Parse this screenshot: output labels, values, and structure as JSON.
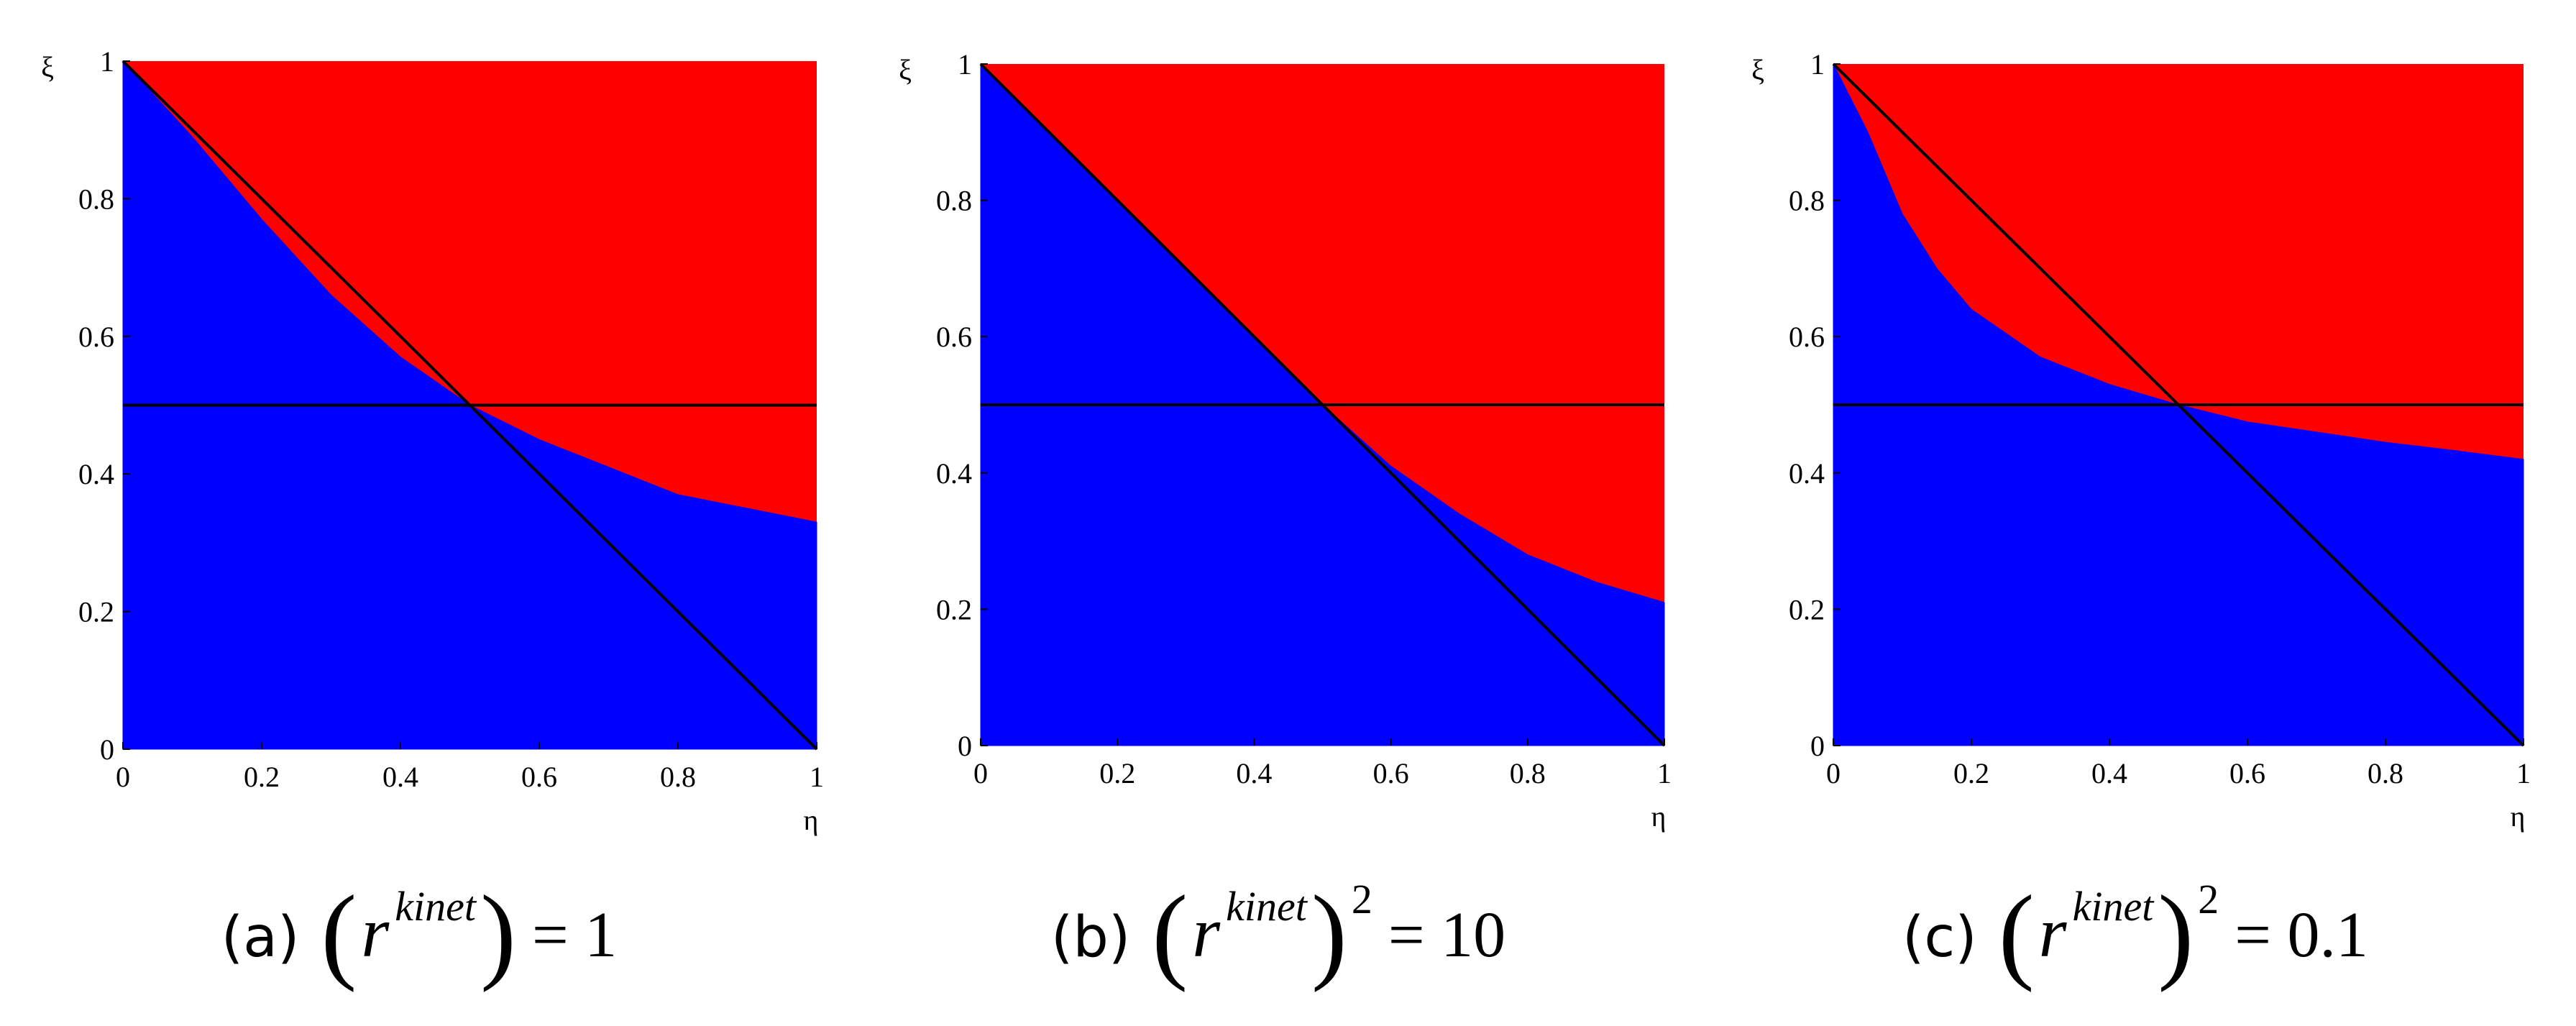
{
  "chart_data": [
    {
      "type": "region",
      "xlabel": "η",
      "ylabel": "ξ",
      "below_color": "#0000ff",
      "above_color": "#ff0000",
      "xlim": [
        0,
        1
      ],
      "ylim": [
        0,
        1
      ],
      "xticks": [
        0,
        0.2,
        0.4,
        0.6,
        0.8,
        1
      ],
      "yticks": [
        0,
        0.2,
        0.4,
        0.6,
        0.8,
        1
      ],
      "x": [
        0,
        0.1,
        0.2,
        0.3,
        0.4,
        0.5,
        0.6,
        0.7,
        0.8,
        0.9,
        1
      ],
      "values": [
        1,
        0.89,
        0.77,
        0.66,
        0.57,
        0.5,
        0.45,
        0.41,
        0.37,
        0.35,
        0.33
      ],
      "lines": [
        {
          "color": "#000000",
          "x": [
            0,
            1
          ],
          "values": [
            1,
            0
          ]
        },
        {
          "color": "#000000",
          "x": [
            0,
            1
          ],
          "values": [
            0.5,
            0.5
          ]
        }
      ],
      "caption": {
        "label": "(a)",
        "open": "(",
        "base": "r",
        "superscript": "kinet",
        "close": ")",
        "rhs": "= 1"
      }
    },
    {
      "type": "region",
      "xlabel": "η",
      "ylabel": "ξ",
      "below_color": "#0000ff",
      "above_color": "#ff0000",
      "xlim": [
        0,
        1
      ],
      "ylim": [
        0,
        1
      ],
      "xticks": [
        0,
        0.2,
        0.4,
        0.6,
        0.8,
        1
      ],
      "yticks": [
        0,
        0.2,
        0.4,
        0.6,
        0.8,
        1
      ],
      "x": [
        0,
        0.1,
        0.2,
        0.3,
        0.4,
        0.5,
        0.6,
        0.7,
        0.8,
        0.9,
        1
      ],
      "values": [
        1,
        0.9,
        0.8,
        0.7,
        0.6,
        0.5,
        0.41,
        0.34,
        0.28,
        0.24,
        0.21
      ],
      "lines": [
        {
          "color": "#000000",
          "x": [
            0,
            1
          ],
          "values": [
            1,
            0
          ]
        },
        {
          "color": "#000000",
          "x": [
            0,
            1
          ],
          "values": [
            0.5,
            0.5
          ]
        }
      ],
      "caption": {
        "label": "(b)",
        "open": "(",
        "base": "r",
        "superscript": "kinet",
        "close": ")",
        "power": "2",
        "rhs": "= 10"
      }
    },
    {
      "type": "region",
      "xlabel": "η",
      "ylabel": "ξ",
      "below_color": "#0000ff",
      "above_color": "#ff0000",
      "xlim": [
        0,
        1
      ],
      "ylim": [
        0,
        1
      ],
      "xticks": [
        0,
        0.2,
        0.4,
        0.6,
        0.8,
        1
      ],
      "yticks": [
        0,
        0.2,
        0.4,
        0.6,
        0.8,
        1
      ],
      "x": [
        0,
        0.05,
        0.1,
        0.15,
        0.2,
        0.3,
        0.4,
        0.5,
        0.6,
        0.7,
        0.8,
        0.9,
        1
      ],
      "values": [
        1,
        0.9,
        0.78,
        0.7,
        0.64,
        0.57,
        0.53,
        0.5,
        0.475,
        0.46,
        0.445,
        0.433,
        0.42
      ],
      "lines": [
        {
          "color": "#000000",
          "x": [
            0,
            1
          ],
          "values": [
            1,
            0
          ]
        },
        {
          "color": "#000000",
          "x": [
            0,
            1
          ],
          "values": [
            0.5,
            0.5
          ]
        }
      ],
      "caption": {
        "label": "(c)",
        "open": "(",
        "base": "r",
        "superscript": "kinet",
        "close": ")",
        "power": "2",
        "rhs": "= 0.1"
      }
    }
  ]
}
